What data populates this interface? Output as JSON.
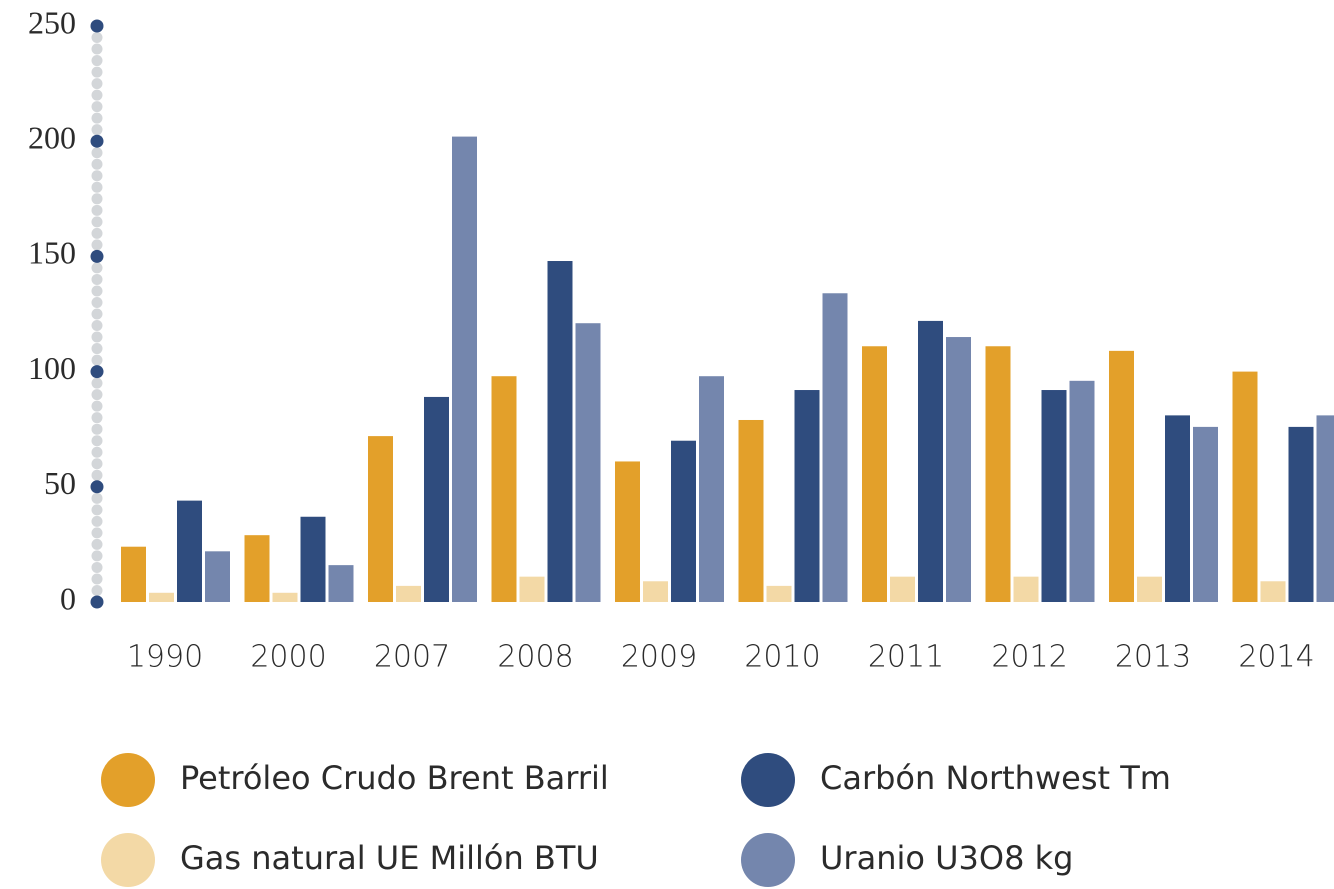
{
  "chart_data": {
    "type": "bar",
    "categories": [
      "1990",
      "2000",
      "2007",
      "2008",
      "2009",
      "2010",
      "2011",
      "2012",
      "2013",
      "2014"
    ],
    "series": [
      {
        "name": "Petróleo Crudo Brent Barril",
        "color": "#e3a02a",
        "values": [
          24,
          29,
          72,
          98,
          61,
          79,
          111,
          111,
          109,
          100
        ]
      },
      {
        "name": "Gas natural UE Millón BTU",
        "color": "#f3d9a6",
        "values": [
          4,
          4,
          7,
          11,
          9,
          7,
          11,
          11,
          11,
          9
        ]
      },
      {
        "name": "Carbón Northwest Tm",
        "color": "#2f4c7e",
        "values": [
          44,
          37,
          89,
          148,
          70,
          92,
          122,
          92,
          81,
          76
        ]
      },
      {
        "name": "Uranio U3O8 kg",
        "color": "#7486ad",
        "values": [
          22,
          16,
          202,
          121,
          98,
          134,
          115,
          96,
          76,
          81
        ]
      }
    ],
    "ylim": [
      0,
      250
    ],
    "yticks": [
      0,
      50,
      100,
      150,
      200,
      250
    ]
  }
}
